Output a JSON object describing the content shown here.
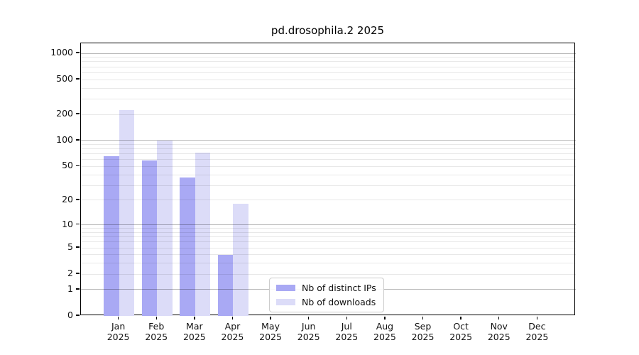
{
  "chart_data": {
    "type": "bar",
    "title": "pd.drosophila.2 2025",
    "categories": [
      "Jan",
      "Feb",
      "Mar",
      "Apr",
      "May",
      "Jun",
      "Jul",
      "Aug",
      "Sep",
      "Oct",
      "Nov",
      "Dec"
    ],
    "category_year": "2025",
    "series": [
      {
        "name": "Nb of distinct IPs",
        "color": "#a9a9f4",
        "values": [
          66,
          59,
          37,
          4,
          0,
          0,
          0,
          0,
          0,
          0,
          0,
          0
        ]
      },
      {
        "name": "Nb of downloads",
        "color": "#dcdcf8",
        "values": [
          225,
          100,
          72,
          18,
          0,
          0,
          0,
          0,
          0,
          0,
          0,
          0
        ]
      }
    ],
    "yticks": [
      0,
      1,
      2,
      5,
      10,
      20,
      50,
      100,
      200,
      500,
      1000
    ],
    "ylim": [
      0,
      1300
    ],
    "yscale": "log1p",
    "xlabel": "",
    "ylabel": "",
    "grid": "horizontal",
    "legend_position": "lower center inside",
    "colors": {
      "axis": "#000000",
      "grid_major": "#b9b9b9",
      "grid_minor": "#e8e8e8",
      "tick_label": "#111111",
      "legend_border": "#cccccc",
      "background": "#ffffff"
    }
  }
}
